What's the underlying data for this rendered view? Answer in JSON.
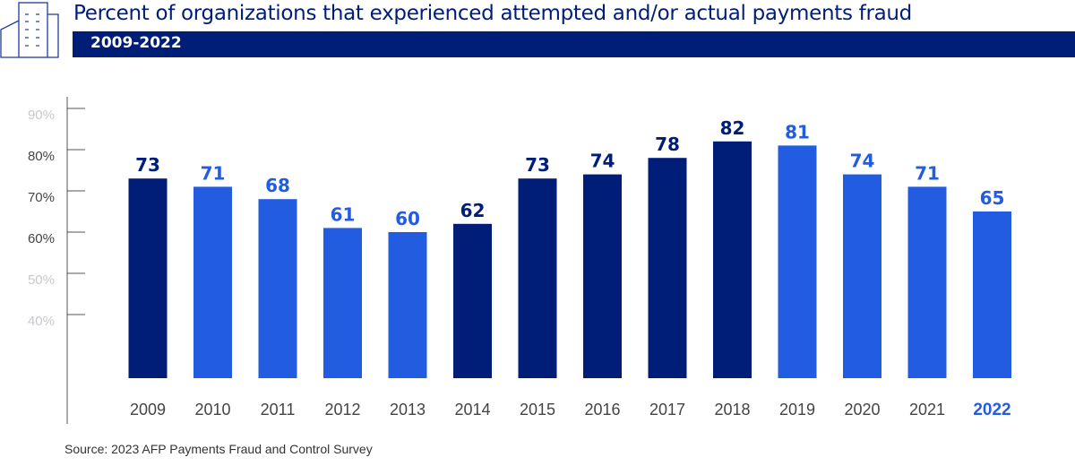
{
  "header": {
    "logo_icon": "building-icon",
    "title": "Percent of organizations that experienced attempted and/or actual payments fraud",
    "subtitle": "2009-2022"
  },
  "colors": {
    "dark": "#001e78",
    "light": "#225ce0",
    "axis_text_dark": "#444444",
    "axis_text_light": "#c8c8cc"
  },
  "chart_data": {
    "type": "bar",
    "title": "Percent of organizations that experienced attempted and/or actual payments fraud",
    "subtitle": "2009-2022",
    "xlabel": "",
    "ylabel": "",
    "categories": [
      "2009",
      "2010",
      "2011",
      "2012",
      "2013",
      "2014",
      "2015",
      "2016",
      "2017",
      "2018",
      "2019",
      "2020",
      "2021",
      "2022"
    ],
    "values": [
      73,
      71,
      68,
      61,
      60,
      62,
      73,
      74,
      78,
      82,
      81,
      74,
      71,
      65
    ],
    "bar_colors": [
      "dark",
      "light",
      "light",
      "light",
      "light",
      "dark",
      "dark",
      "dark",
      "dark",
      "dark",
      "light",
      "light",
      "light",
      "light"
    ],
    "highlighted_category": "2022",
    "yticks": [
      {
        "value": 90,
        "label": "90%",
        "style": "light"
      },
      {
        "value": 80,
        "label": "80%",
        "style": "dark"
      },
      {
        "value": 70,
        "label": "70%",
        "style": "dark"
      },
      {
        "value": 60,
        "label": "60%",
        "style": "light_dark"
      },
      {
        "value": 50,
        "label": "50%",
        "style": "light"
      },
      {
        "value": 40,
        "label": "40%",
        "style": "light"
      }
    ],
    "grid": false,
    "legend": "none"
  },
  "footer": {
    "source": "Source: 2023 AFP Payments Fraud and Control Survey"
  }
}
